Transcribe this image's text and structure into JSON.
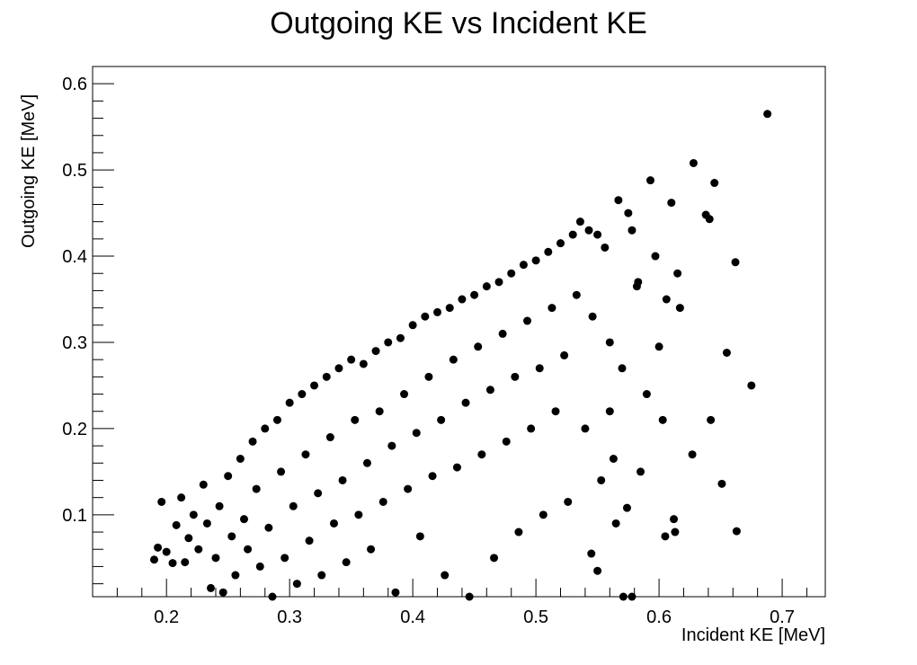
{
  "chart_data": {
    "type": "scatter",
    "title": "Outgoing KE vs Incident KE",
    "xlabel": "Incident KE [MeV]",
    "ylabel": "Outgoing KE [MeV]",
    "xlim": [
      0.14,
      0.735
    ],
    "ylim": [
      0.005,
      0.62
    ],
    "x_ticks": [
      0.2,
      0.3,
      0.4,
      0.5,
      0.6,
      0.7
    ],
    "x_tick_labels": [
      "0.2",
      "0.3",
      "0.4",
      "0.5",
      "0.6",
      "0.7"
    ],
    "y_ticks": [
      0.1,
      0.2,
      0.3,
      0.4,
      0.5,
      0.6
    ],
    "y_tick_labels": [
      "0.1",
      "0.2",
      "0.3",
      "0.4",
      "0.5",
      "0.6"
    ],
    "grid": false,
    "marker_color": "#000000",
    "points": [
      [
        0.19,
        0.048
      ],
      [
        0.193,
        0.062
      ],
      [
        0.196,
        0.115
      ],
      [
        0.2,
        0.057
      ],
      [
        0.205,
        0.044
      ],
      [
        0.208,
        0.088
      ],
      [
        0.212,
        0.12
      ],
      [
        0.215,
        0.045
      ],
      [
        0.218,
        0.073
      ],
      [
        0.222,
        0.1
      ],
      [
        0.226,
        0.06
      ],
      [
        0.23,
        0.135
      ],
      [
        0.233,
        0.09
      ],
      [
        0.236,
        0.015
      ],
      [
        0.24,
        0.05
      ],
      [
        0.243,
        0.11
      ],
      [
        0.246,
        0.01
      ],
      [
        0.25,
        0.145
      ],
      [
        0.253,
        0.075
      ],
      [
        0.256,
        0.03
      ],
      [
        0.26,
        0.165
      ],
      [
        0.263,
        0.095
      ],
      [
        0.266,
        0.06
      ],
      [
        0.27,
        0.185
      ],
      [
        0.273,
        0.13
      ],
      [
        0.276,
        0.04
      ],
      [
        0.28,
        0.2
      ],
      [
        0.283,
        0.085
      ],
      [
        0.286,
        0.005
      ],
      [
        0.29,
        0.21
      ],
      [
        0.293,
        0.15
      ],
      [
        0.296,
        0.05
      ],
      [
        0.3,
        0.23
      ],
      [
        0.303,
        0.11
      ],
      [
        0.306,
        0.02
      ],
      [
        0.31,
        0.24
      ],
      [
        0.313,
        0.17
      ],
      [
        0.316,
        0.07
      ],
      [
        0.32,
        0.25
      ],
      [
        0.323,
        0.125
      ],
      [
        0.326,
        0.03
      ],
      [
        0.33,
        0.26
      ],
      [
        0.333,
        0.19
      ],
      [
        0.336,
        0.09
      ],
      [
        0.34,
        0.27
      ],
      [
        0.343,
        0.14
      ],
      [
        0.346,
        0.045
      ],
      [
        0.35,
        0.28
      ],
      [
        0.353,
        0.21
      ],
      [
        0.356,
        0.1
      ],
      [
        0.36,
        0.275
      ],
      [
        0.363,
        0.16
      ],
      [
        0.366,
        0.06
      ],
      [
        0.37,
        0.29
      ],
      [
        0.373,
        0.22
      ],
      [
        0.376,
        0.115
      ],
      [
        0.38,
        0.3
      ],
      [
        0.383,
        0.18
      ],
      [
        0.386,
        0.01
      ],
      [
        0.39,
        0.305
      ],
      [
        0.393,
        0.24
      ],
      [
        0.396,
        0.13
      ],
      [
        0.4,
        0.32
      ],
      [
        0.403,
        0.195
      ],
      [
        0.406,
        0.075
      ],
      [
        0.41,
        0.33
      ],
      [
        0.413,
        0.26
      ],
      [
        0.416,
        0.145
      ],
      [
        0.42,
        0.335
      ],
      [
        0.423,
        0.21
      ],
      [
        0.426,
        0.03
      ],
      [
        0.43,
        0.34
      ],
      [
        0.433,
        0.28
      ],
      [
        0.436,
        0.155
      ],
      [
        0.44,
        0.35
      ],
      [
        0.443,
        0.23
      ],
      [
        0.446,
        0.005
      ],
      [
        0.45,
        0.355
      ],
      [
        0.453,
        0.295
      ],
      [
        0.456,
        0.17
      ],
      [
        0.46,
        0.365
      ],
      [
        0.463,
        0.245
      ],
      [
        0.466,
        0.05
      ],
      [
        0.47,
        0.37
      ],
      [
        0.473,
        0.31
      ],
      [
        0.476,
        0.185
      ],
      [
        0.48,
        0.38
      ],
      [
        0.483,
        0.26
      ],
      [
        0.486,
        0.08
      ],
      [
        0.49,
        0.39
      ],
      [
        0.493,
        0.325
      ],
      [
        0.496,
        0.2
      ],
      [
        0.5,
        0.395
      ],
      [
        0.503,
        0.27
      ],
      [
        0.506,
        0.1
      ],
      [
        0.51,
        0.405
      ],
      [
        0.513,
        0.34
      ],
      [
        0.516,
        0.22
      ],
      [
        0.52,
        0.415
      ],
      [
        0.523,
        0.285
      ],
      [
        0.526,
        0.115
      ],
      [
        0.53,
        0.425
      ],
      [
        0.533,
        0.355
      ],
      [
        0.536,
        0.44
      ],
      [
        0.54,
        0.2
      ],
      [
        0.543,
        0.43
      ],
      [
        0.546,
        0.33
      ],
      [
        0.55,
        0.425
      ],
      [
        0.553,
        0.14
      ],
      [
        0.556,
        0.41
      ],
      [
        0.56,
        0.3
      ],
      [
        0.563,
        0.165
      ],
      [
        0.567,
        0.465
      ],
      [
        0.57,
        0.27
      ],
      [
        0.575,
        0.45
      ],
      [
        0.578,
        0.43
      ],
      [
        0.582,
        0.365
      ],
      [
        0.585,
        0.15
      ],
      [
        0.59,
        0.24
      ],
      [
        0.593,
        0.488
      ],
      [
        0.597,
        0.4
      ],
      [
        0.6,
        0.295
      ],
      [
        0.603,
        0.21
      ],
      [
        0.606,
        0.35
      ],
      [
        0.61,
        0.462
      ],
      [
        0.612,
        0.095
      ],
      [
        0.613,
        0.08
      ],
      [
        0.615,
        0.38
      ],
      [
        0.617,
        0.34
      ],
      [
        0.605,
        0.075
      ],
      [
        0.628,
        0.508
      ],
      [
        0.627,
        0.17
      ],
      [
        0.638,
        0.448
      ],
      [
        0.641,
        0.443
      ],
      [
        0.642,
        0.21
      ],
      [
        0.645,
        0.485
      ],
      [
        0.651,
        0.136
      ],
      [
        0.655,
        0.288
      ],
      [
        0.662,
        0.393
      ],
      [
        0.663,
        0.081
      ],
      [
        0.675,
        0.25
      ],
      [
        0.688,
        0.565
      ],
      [
        0.571,
        0.005
      ],
      [
        0.574,
        0.108
      ],
      [
        0.583,
        0.37
      ],
      [
        0.55,
        0.035
      ],
      [
        0.545,
        0.055
      ],
      [
        0.56,
        0.22
      ],
      [
        0.565,
        0.09
      ],
      [
        0.578,
        0.005
      ]
    ]
  }
}
